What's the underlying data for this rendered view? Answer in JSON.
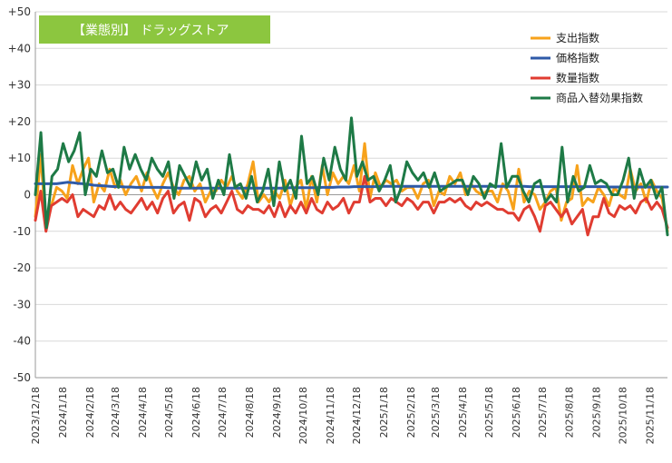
{
  "chart_data": {
    "type": "line",
    "title": "【業態別】 ドラッグストア",
    "title_bg_color": "#8cc63f",
    "ylim": [
      -50,
      50
    ],
    "y_ticks": [
      -50,
      -40,
      -30,
      -20,
      -10,
      0,
      10,
      20,
      30,
      40,
      50
    ],
    "y_tick_labels": [
      "-50",
      "-40",
      "-30",
      "-20",
      "-10",
      "0",
      "+10",
      "+20",
      "+30",
      "+40",
      "+50"
    ],
    "x_start_date": "2023-12-18",
    "x_end_date": "2025-12-08",
    "x_tick_labels": [
      "2023/12/18",
      "2024/1/18",
      "2024/2/18",
      "2024/3/18",
      "2024/4/18",
      "2024/5/18",
      "2024/6/18",
      "2024/7/18",
      "2024/8/18",
      "2024/9/18",
      "2024/10/18",
      "2024/11/18",
      "2024/12/18",
      "2025/1/18",
      "2025/2/18",
      "2025/3/18",
      "2025/4/18",
      "2025/5/18",
      "2025/6/18",
      "2025/7/18",
      "2025/8/18",
      "2025/9/18",
      "2025/10/18",
      "2025/11/18"
    ],
    "grid": true,
    "legend_position": "top-right",
    "series": [
      {
        "name": "支出指数",
        "color": "#f7a21b",
        "values": [
          -6,
          11,
          -9,
          -3,
          2,
          1,
          -1,
          8,
          3,
          7,
          10,
          -2,
          3,
          1,
          7,
          2,
          4,
          0,
          3,
          5,
          1,
          6,
          2,
          -1,
          3,
          6,
          2,
          0,
          4,
          5,
          1,
          3,
          -2,
          1,
          1,
          4,
          2,
          5,
          1,
          -1,
          3,
          9,
          -2,
          0,
          -2,
          1,
          -1,
          4,
          -3,
          2,
          4,
          -4,
          5,
          -2,
          8,
          0,
          6,
          3,
          5,
          3,
          8,
          1,
          14,
          -1,
          6,
          2,
          4,
          3,
          4,
          1,
          2,
          2,
          -1,
          3,
          4,
          -3,
          1,
          0,
          5,
          3,
          6,
          0,
          3,
          1,
          0,
          1,
          1,
          -2,
          3,
          1,
          -4,
          7,
          -2,
          1,
          0,
          -4,
          -2,
          1,
          2,
          -7,
          -2,
          -1,
          8,
          -3,
          -1,
          -2,
          2,
          0,
          -3,
          2,
          0,
          -1,
          7,
          1,
          3,
          -2,
          4,
          1,
          -1,
          -10
        ]
      },
      {
        "name": "価格指数",
        "color": "#2e5aa8",
        "values": [
          3,
          3,
          3,
          3,
          3,
          3.2,
          3.4,
          3.3,
          3.1,
          3,
          2.8,
          2.6,
          2.5,
          2.4,
          2.3,
          2.2,
          2.2,
          2.1,
          2.1,
          2,
          2,
          2,
          2,
          2,
          2,
          1.9,
          1.9,
          1.8,
          1.8,
          1.8,
          1.8,
          1.8,
          1.8,
          1.8,
          1.8,
          1.8,
          1.8,
          1.8,
          1.8,
          1.8,
          1.8,
          1.8,
          1.8,
          1.8,
          1.8,
          1.8,
          1.8,
          1.8,
          1.9,
          1.9,
          1.9,
          1.9,
          1.9,
          1.9,
          2,
          2,
          2,
          2.1,
          2.1,
          2.1,
          2.2,
          2.2,
          2.2,
          2.2,
          2.2,
          2.3,
          2.3,
          2.3,
          2.3,
          2.3,
          2.3,
          2.3,
          2.3,
          2.3,
          2.3,
          2.3,
          2.3,
          2.3,
          2.3,
          2.3,
          2.3,
          2.3,
          2.3,
          2.3,
          2.3,
          2.3,
          2.3,
          2.3,
          2.3,
          2.3,
          2.3,
          2.3,
          2.3,
          2.2,
          2.2,
          2.2,
          2.2,
          2.2,
          2.2,
          2.2,
          2.2,
          2.2,
          2.2,
          2.2,
          2.2,
          2.2,
          2.2,
          2.2,
          2.1,
          2.1,
          2.1,
          2.1,
          2.1,
          2.1,
          2.1,
          2.1,
          2.1,
          2.1,
          2.1,
          2.1
        ]
      },
      {
        "name": "数量指数",
        "color": "#e03c31",
        "values": [
          -7,
          1,
          -10,
          -3,
          -2,
          -1,
          -2,
          0,
          -6,
          -4,
          -5,
          -6,
          -3,
          -4,
          0,
          -4,
          -2,
          -4,
          -5,
          -3,
          -1,
          -4,
          -2,
          -5,
          -1,
          1,
          -5,
          -3,
          -2,
          -7,
          -1,
          -2,
          -6,
          -4,
          -3,
          -5,
          -2,
          1,
          -4,
          -5,
          -3,
          -4,
          -4,
          -5,
          -3,
          -6,
          -2,
          -6,
          -3,
          -5,
          -2,
          -5,
          -1,
          -4,
          -5,
          -2,
          -4,
          -3,
          -1,
          -5,
          -2,
          -2,
          5,
          -2,
          -1,
          -1,
          -3,
          -1,
          -2,
          -3,
          -1,
          -2,
          -4,
          -2,
          -2,
          -5,
          -2,
          -2,
          -1,
          -2,
          -1,
          -3,
          -4,
          -2,
          -3,
          -2,
          -3,
          -4,
          -4,
          -5,
          -5,
          -7,
          -4,
          -3,
          -6,
          -10,
          -3,
          -2,
          -4,
          -6,
          -4,
          -8,
          -6,
          -4,
          -11,
          -6,
          -6,
          -1,
          -5,
          -6,
          -3,
          -4,
          -3,
          -5,
          -2,
          -1,
          -4,
          -2,
          -4,
          -9
        ]
      },
      {
        "name": "商品入替効果指数",
        "color": "#1e7a46",
        "values": [
          0,
          17,
          -9,
          5,
          7,
          14,
          9,
          12,
          17,
          0,
          7,
          5,
          12,
          6,
          7,
          2,
          13,
          7,
          11,
          7,
          4,
          10,
          7,
          5,
          9,
          -1,
          8,
          5,
          2,
          9,
          4,
          7,
          -1,
          4,
          0,
          11,
          2,
          3,
          -1,
          5,
          -2,
          1,
          7,
          -3,
          9,
          1,
          4,
          -1,
          16,
          3,
          5,
          0,
          10,
          4,
          13,
          7,
          4,
          21,
          5,
          9,
          4,
          5,
          1,
          4,
          8,
          -2,
          2,
          9,
          6,
          4,
          6,
          2,
          6,
          1,
          2,
          3,
          4,
          4,
          0,
          5,
          3,
          -1,
          3,
          2,
          14,
          2,
          5,
          5,
          1,
          -2,
          3,
          4,
          -2,
          0,
          -2,
          13,
          -2,
          5,
          1,
          2,
          8,
          3,
          4,
          3,
          0,
          0,
          4,
          10,
          -1,
          7,
          2,
          4,
          -1,
          2,
          -11
        ]
      }
    ]
  }
}
